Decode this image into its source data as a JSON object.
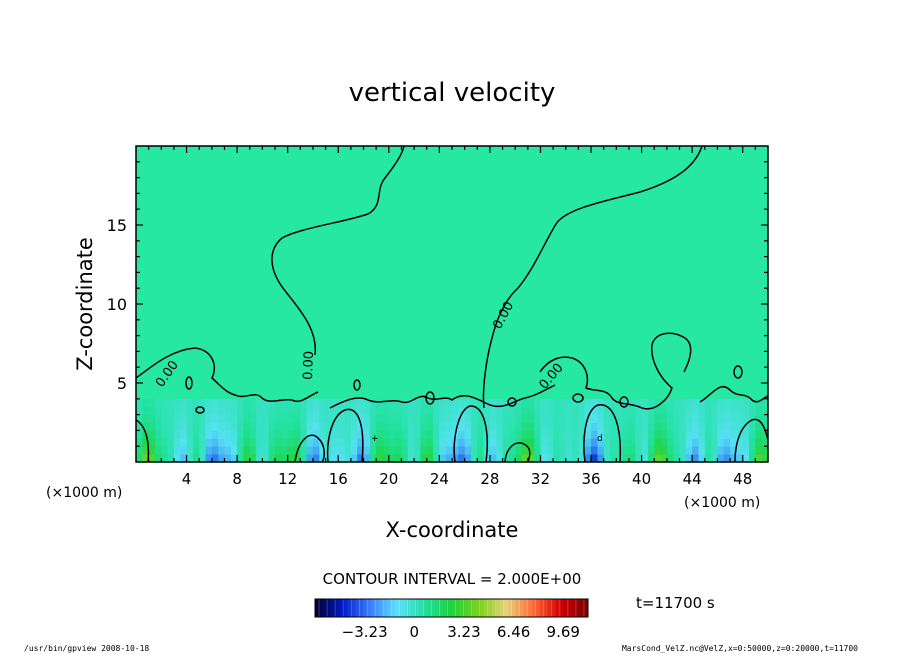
{
  "chart_data": {
    "type": "heatmap",
    "title": "vertical velocity",
    "xlabel": "X-coordinate",
    "ylabel": "Z-coordinate",
    "x_unit": "(×1000 m)",
    "y_unit": "(×1000 m)",
    "xlim": [
      0,
      50
    ],
    "ylim": [
      0,
      20
    ],
    "x_ticks": [
      4,
      8,
      12,
      16,
      20,
      24,
      28,
      32,
      36,
      40,
      44,
      48
    ],
    "y_ticks": [
      5,
      10,
      15
    ],
    "contour_interval_label": "CONTOUR INTERVAL = 2.000E+00",
    "contour_labels": [
      "0.00",
      "0.00",
      "0.00",
      "0.00"
    ],
    "max_marker": "d",
    "min_marker": "+",
    "colorbar": {
      "ticks": [
        -3.23,
        0,
        3.23,
        6.46,
        9.69
      ],
      "tick_labels": [
        "−3.23",
        "0",
        "3.23",
        "6.46",
        "9.69"
      ],
      "range": [
        -6.46,
        11.3
      ],
      "colors": [
        "#000033",
        "#0018c8",
        "#3a7dff",
        "#5ee0ff",
        "#22e0a0",
        "#1ed23c",
        "#7ad21e",
        "#e6d27a",
        "#ff6a3a",
        "#d20000",
        "#780000"
      ]
    },
    "time_label": "t=11700 s",
    "background_value_color": "#26e8a2"
  },
  "footer": {
    "left": "/usr/bin/gpview 2008-10-18",
    "right": "MarsCond_VelZ.nc@VelZ,x=0:50000,z=0:20000,t=11700"
  }
}
